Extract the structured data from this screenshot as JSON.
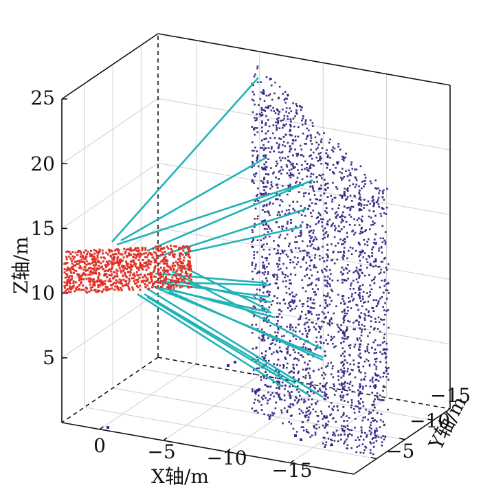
{
  "chart_data": {
    "type": "scatter3d",
    "title": "",
    "xlabel": "X轴/m",
    "ylabel": "Y轴/m",
    "zlabel": "Z轴/m",
    "x_ticks": [
      "0",
      "−5",
      "−10",
      "−15"
    ],
    "y_ticks": [
      "−5",
      "−10",
      "−15"
    ],
    "z_ticks": [
      "5",
      "10",
      "15",
      "20",
      "25"
    ],
    "xlim": [
      3,
      -20
    ],
    "ylim": [
      -1,
      -18
    ],
    "zlim": [
      0,
      25
    ],
    "grid": true,
    "colors": {
      "building_points": "#3a2d86",
      "camera_points": "#e03228",
      "correspondence_lines": "#1fb3b5",
      "axes": "#111111",
      "grid": "#cfcfcf"
    },
    "series": [
      {
        "type": "point-cloud"
      },
      {
        "type": "point-cloud"
      },
      {
        "type": "correspondence-lines"
      }
    ]
  }
}
